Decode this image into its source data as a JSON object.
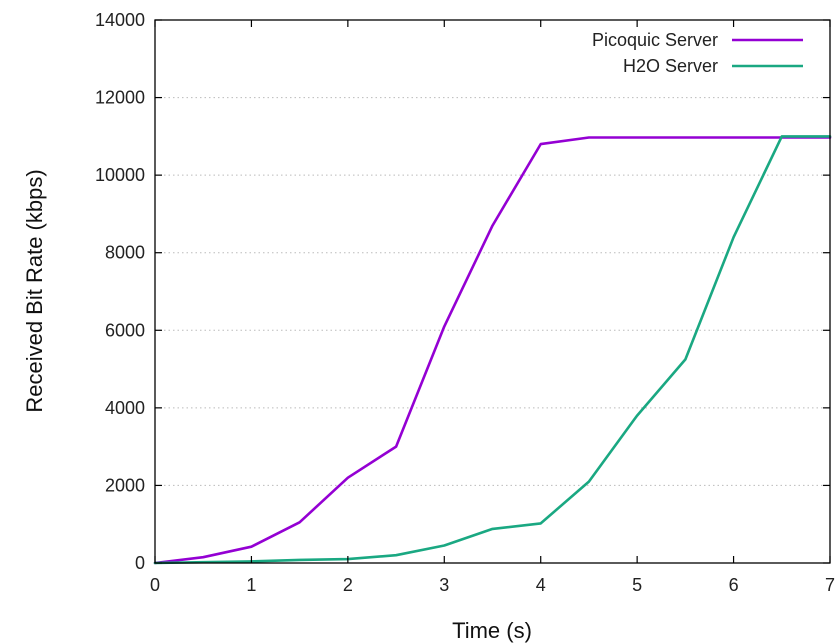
{
  "chart_data": {
    "type": "line",
    "title": "",
    "xlabel": "Time (s)",
    "ylabel": "Received Bit Rate (kbps)",
    "xlim": [
      0,
      7
    ],
    "ylim": [
      0,
      14000
    ],
    "xticks": [
      0,
      1,
      2,
      3,
      4,
      5,
      6,
      7
    ],
    "yticks": [
      0,
      2000,
      4000,
      6000,
      8000,
      10000,
      12000,
      14000
    ],
    "xtick_labels": [
      "0",
      "1",
      "2",
      "3",
      "4",
      "5",
      "6",
      "7"
    ],
    "ytick_labels": [
      "0",
      "2000",
      "4000",
      "6000",
      "8000",
      "10000",
      "12000",
      "14000"
    ],
    "grid": "horizontal dotted",
    "legend_position": "top-right",
    "series": [
      {
        "name": "Picoquic Server",
        "color": "#9400d3",
        "x": [
          0,
          0.5,
          1,
          1.5,
          2,
          2.5,
          3,
          3.5,
          4,
          4.5,
          5,
          5.5,
          6,
          6.5,
          7
        ],
        "y": [
          0,
          150,
          420,
          1050,
          2200,
          3000,
          6100,
          8700,
          10800,
          10970,
          10970,
          10970,
          10970,
          10970,
          10970
        ]
      },
      {
        "name": "H2O Server",
        "color": "#1aa882",
        "x": [
          0,
          0.5,
          1,
          1.5,
          2,
          2.5,
          3,
          3.5,
          4,
          4.5,
          5,
          5.5,
          6,
          6.5,
          7
        ],
        "y": [
          0,
          20,
          40,
          80,
          100,
          200,
          450,
          880,
          1020,
          2100,
          3800,
          5250,
          8400,
          11000,
          11000
        ]
      }
    ]
  }
}
